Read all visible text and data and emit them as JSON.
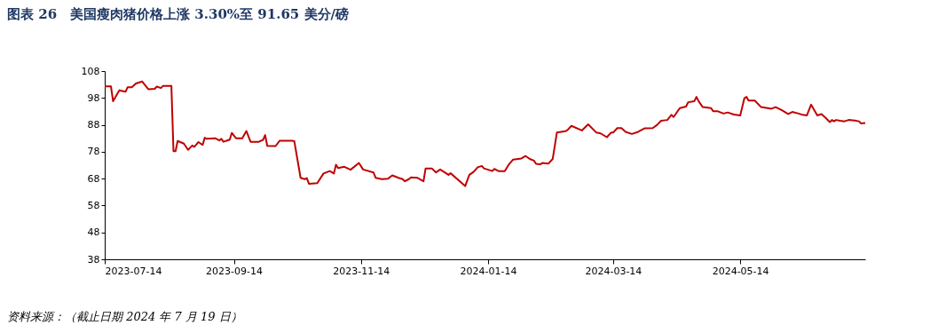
{
  "chart_data": {
    "type": "line",
    "title": "图表 26　美国瘦肉猪价格上涨 3.30%至 91.65 美分/磅",
    "annotations": [
      "资料来源：（截止日期 2024 年 7 月 19 日）"
    ],
    "xlim": [
      "2023-07-14",
      "2024-07-13"
    ],
    "xticks": [
      "2023-07-14",
      "2023-09-14",
      "2023-11-14",
      "2024-01-14",
      "2024-03-14",
      "2024-05-14"
    ],
    "ylim": [
      38,
      108
    ],
    "yticks": [
      38,
      48,
      58,
      68,
      78,
      88,
      98,
      108
    ],
    "grid": false,
    "marker": "none",
    "line_style": "solid",
    "x": [
      "2023-07-14",
      "2023-07-17",
      "2023-07-18",
      "2023-07-21",
      "2023-07-24",
      "2023-07-25",
      "2023-07-27",
      "2023-07-29",
      "2023-08-01",
      "2023-08-04",
      "2023-08-07",
      "2023-08-08",
      "2023-08-10",
      "2023-08-11",
      "2023-08-15",
      "2023-08-16",
      "2023-08-17",
      "2023-08-18",
      "2023-08-21",
      "2023-08-23",
      "2023-08-25",
      "2023-08-26",
      "2023-08-28",
      "2023-08-30",
      "2023-08-31",
      "2023-09-01",
      "2023-09-05",
      "2023-09-07",
      "2023-09-08",
      "2023-09-09",
      "2023-09-12",
      "2023-09-13",
      "2023-09-15",
      "2023-09-18",
      "2023-09-20",
      "2023-09-22",
      "2023-09-26",
      "2023-09-28",
      "2023-09-29",
      "2023-09-30",
      "2023-10-04",
      "2023-10-06",
      "2023-10-12",
      "2023-10-13",
      "2023-10-16",
      "2023-10-18",
      "2023-10-19",
      "2023-10-20",
      "2023-10-24",
      "2023-10-27",
      "2023-10-30",
      "2023-11-01",
      "2023-11-02",
      "2023-11-03",
      "2023-11-06",
      "2023-11-09",
      "2023-11-13",
      "2023-11-15",
      "2023-11-20",
      "2023-11-21",
      "2023-11-24",
      "2023-11-27",
      "2023-11-29",
      "2023-12-02",
      "2023-12-04",
      "2023-12-05",
      "2023-12-07",
      "2023-12-08",
      "2023-12-11",
      "2023-12-13",
      "2023-12-14",
      "2023-12-15",
      "2023-12-18",
      "2023-12-20",
      "2023-12-22",
      "2023-12-26",
      "2023-12-27",
      "2024-01-03",
      "2024-01-05",
      "2024-01-07",
      "2024-01-09",
      "2024-01-11",
      "2024-01-12",
      "2024-01-16",
      "2024-01-17",
      "2024-01-19",
      "2024-01-22",
      "2024-01-24",
      "2024-01-26",
      "2024-01-30",
      "2024-02-01",
      "2024-02-03",
      "2024-02-05",
      "2024-02-06",
      "2024-02-08",
      "2024-02-09",
      "2024-02-12",
      "2024-02-14",
      "2024-02-16",
      "2024-02-20",
      "2024-02-21",
      "2024-02-23",
      "2024-02-28",
      "2024-03-02",
      "2024-03-06",
      "2024-03-08",
      "2024-03-11",
      "2024-03-13",
      "2024-03-14",
      "2024-03-16",
      "2024-03-18",
      "2024-03-20",
      "2024-03-23",
      "2024-03-26",
      "2024-03-29",
      "2024-04-02",
      "2024-04-04",
      "2024-04-06",
      "2024-04-09",
      "2024-04-11",
      "2024-04-12",
      "2024-04-15",
      "2024-04-18",
      "2024-04-19",
      "2024-04-22",
      "2024-04-23",
      "2024-04-24",
      "2024-04-26",
      "2024-04-30",
      "2024-05-01",
      "2024-05-03",
      "2024-05-06",
      "2024-05-08",
      "2024-05-11",
      "2024-05-14",
      "2024-05-16",
      "2024-05-17",
      "2024-05-18",
      "2024-05-21",
      "2024-05-24",
      "2024-05-29",
      "2024-05-31",
      "2024-06-03",
      "2024-06-06",
      "2024-06-08",
      "2024-06-11",
      "2024-06-13",
      "2024-06-15",
      "2024-06-17",
      "2024-06-20",
      "2024-06-22",
      "2024-06-24",
      "2024-06-26",
      "2024-06-27",
      "2024-06-28",
      "2024-06-29",
      "2024-07-01",
      "2024-07-03",
      "2024-07-05",
      "2024-07-08",
      "2024-07-10",
      "2024-07-11",
      "2024-07-13"
    ],
    "series": [
      {
        "color": "#c00000",
        "values": [
          102.3,
          102.3,
          96.8,
          100.8,
          100.3,
          102,
          102,
          103.4,
          104.1,
          101.2,
          101.4,
          102.2,
          101.7,
          102.5,
          102.5,
          78.2,
          78.2,
          82,
          81,
          78.7,
          80.3,
          79.8,
          81.6,
          80.5,
          83.2,
          82.8,
          83,
          82.2,
          82.8,
          81.7,
          82.5,
          85,
          83,
          83,
          85.7,
          81.7,
          81.7,
          82.4,
          84.2,
          80.2,
          80.1,
          82.1,
          82.1,
          81.9,
          68.3,
          67.8,
          68.2,
          66.1,
          66.3,
          69.9,
          70.8,
          69.9,
          73.2,
          71.9,
          72.4,
          71.3,
          73.8,
          71.4,
          70.3,
          68.3,
          67.8,
          68,
          69.2,
          68.3,
          67.8,
          67,
          67.8,
          68.5,
          68.3,
          67.4,
          67,
          71.8,
          71.8,
          70.3,
          71.4,
          69.4,
          70,
          65.2,
          69.4,
          70.5,
          72.2,
          72.7,
          71.8,
          70.8,
          71.6,
          70.8,
          70.8,
          73.3,
          75.1,
          75.5,
          76.4,
          75.3,
          74.7,
          73.5,
          73.3,
          73.8,
          73.6,
          75.3,
          85.1,
          85.6,
          86,
          87.6,
          85.9,
          88.2,
          85.1,
          84.8,
          83.4,
          85.1,
          85.1,
          86.8,
          86.8,
          85.4,
          84.6,
          85.4,
          86.7,
          86.8,
          87.9,
          89.5,
          89.8,
          91.7,
          90.9,
          94.2,
          94.8,
          96.4,
          96.8,
          98.4,
          96.8,
          94.6,
          94.2,
          93.1,
          93.1,
          92.2,
          92.6,
          91.8,
          91.5,
          97.9,
          98.4,
          97,
          97,
          94.6,
          94,
          94.6,
          93.4,
          92,
          92.8,
          92.2,
          91.7,
          91.5,
          95.5,
          91.5,
          92,
          90.6,
          89,
          89.8,
          89.3,
          89.8,
          89.5,
          89.3,
          89.8,
          89.6,
          89.3,
          88.5,
          88.7
        ]
      }
    ]
  }
}
